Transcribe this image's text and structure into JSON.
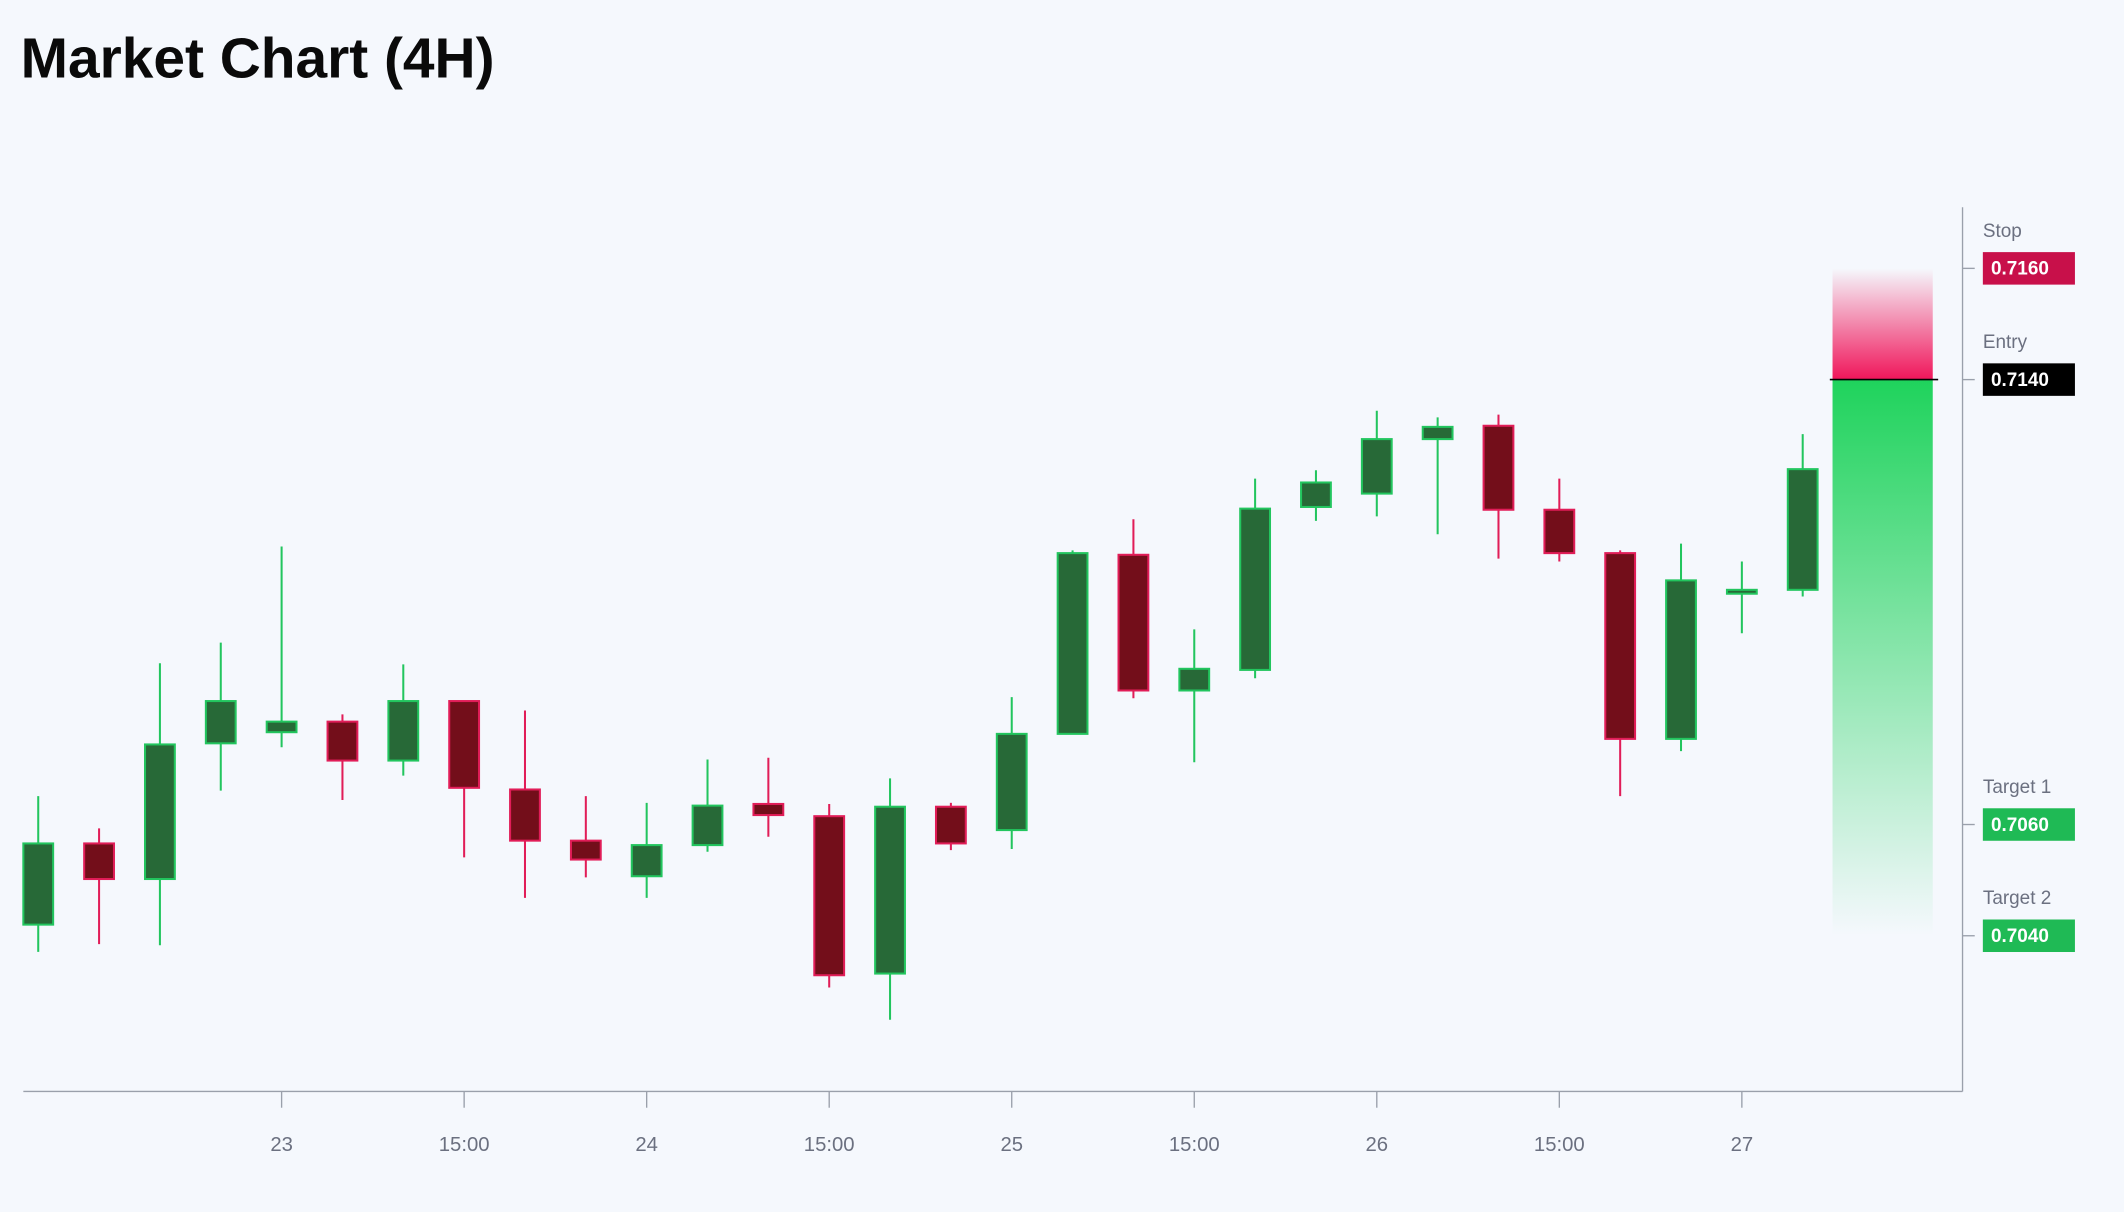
{
  "chart_data": {
    "type": "candlestick",
    "title": "Market Chart (4H)",
    "categories": [
      null,
      null,
      null,
      null,
      "23",
      null,
      null,
      "15:00",
      null,
      null,
      "24",
      null,
      null,
      "15:00",
      null,
      null,
      "25",
      null,
      null,
      "15:00",
      null,
      null,
      "26",
      null,
      null,
      "15:00",
      null,
      null,
      "27",
      null
    ],
    "open": [
      0.7042,
      0.70566,
      0.70502,
      0.70746,
      0.70766,
      0.70785,
      0.70715,
      0.70822,
      0.70663,
      0.70571,
      0.70507,
      0.70563,
      0.70637,
      0.70615,
      0.70332,
      0.70632,
      0.7059,
      0.70763,
      0.71085,
      0.70841,
      0.70878,
      0.71171,
      0.71195,
      0.71293,
      0.71317,
      0.71166,
      0.71088,
      0.70754,
      0.71015,
      0.71022
    ],
    "high": [
      0.70651,
      0.70593,
      0.7089,
      0.70927,
      0.711,
      0.70798,
      0.70888,
      0.70822,
      0.70805,
      0.70651,
      0.70639,
      0.70717,
      0.7072,
      0.70637,
      0.70683,
      0.70639,
      0.70829,
      0.71093,
      0.71149,
      0.70951,
      0.71222,
      0.71237,
      0.71344,
      0.71332,
      0.71337,
      0.71222,
      0.71093,
      0.71105,
      0.71073,
      0.71302
    ],
    "low": [
      0.70371,
      0.70385,
      0.70383,
      0.70661,
      0.70739,
      0.70644,
      0.70688,
      0.70541,
      0.70468,
      0.70505,
      0.70468,
      0.70551,
      0.70578,
      0.70307,
      0.70249,
      0.70554,
      0.70556,
      0.70763,
      0.70827,
      0.70712,
      0.70863,
      0.71146,
      0.71154,
      0.71122,
      0.71078,
      0.71073,
      0.70651,
      0.70732,
      0.70944,
      0.7101
    ],
    "close": [
      0.70566,
      0.70502,
      0.70744,
      0.70822,
      0.70785,
      0.70715,
      0.70822,
      0.70666,
      0.70571,
      0.70537,
      0.70563,
      0.70634,
      0.70617,
      0.70329,
      0.70632,
      0.70566,
      0.70763,
      0.71088,
      0.70841,
      0.7088,
      0.71168,
      0.71215,
      0.71293,
      0.71315,
      0.71166,
      0.71088,
      0.70754,
      0.71039,
      0.71022,
      0.71239
    ],
    "ylim": [
      0.7012,
      0.7171
    ],
    "up_color": "#276937",
    "up_border": "#22c55e",
    "down_color": "#730e1a",
    "down_border": "#e11d58",
    "levels": [
      {
        "name": "Stop",
        "value": {
          "value": 0.716,
          "label": "0.7160"
        },
        "color": "#c8104a"
      },
      {
        "name": "Entry",
        "value": {
          "value": 0.714,
          "label": "0.7140"
        },
        "color": "#000000"
      },
      {
        "name": "Target 1",
        "value": {
          "value": 0.706,
          "label": "0.7060"
        },
        "color": "#1fba55"
      },
      {
        "name": "Target 2",
        "value": {
          "value": 0.704,
          "label": "0.7040"
        },
        "color": "#1fba55"
      }
    ]
  }
}
